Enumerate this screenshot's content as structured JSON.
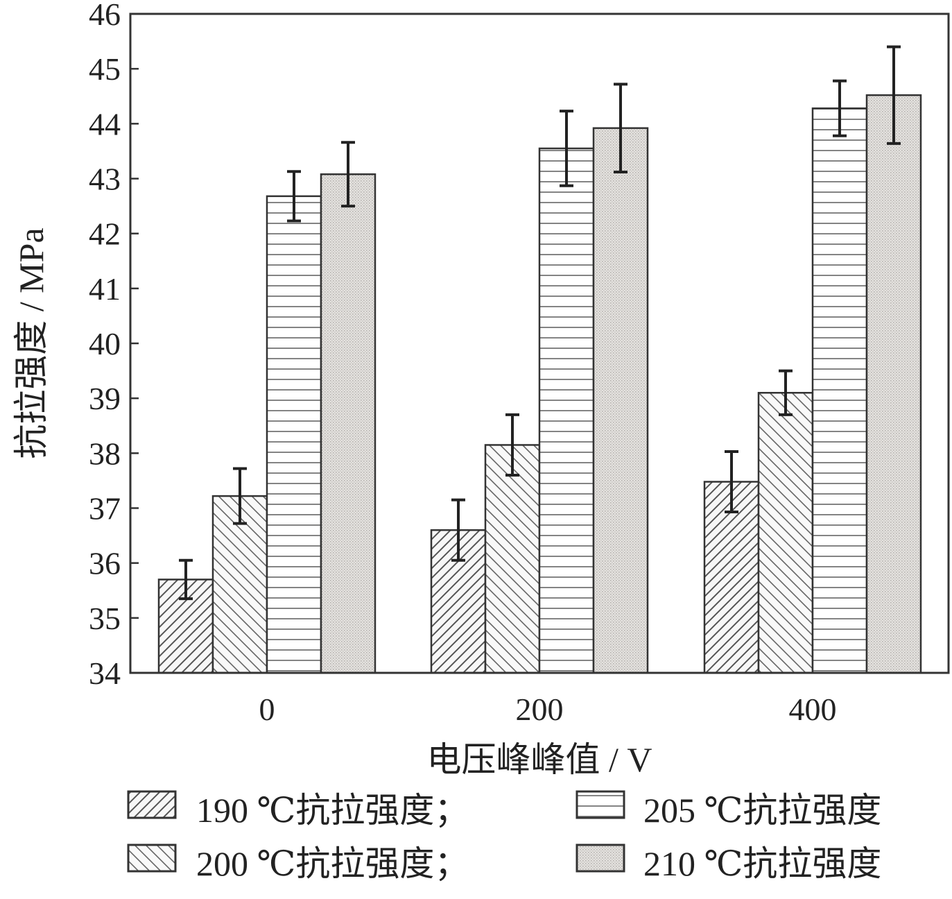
{
  "chart_data": {
    "type": "bar",
    "xlabel": "电压峰峰值 / V",
    "ylabel": "抗拉强度 / MPa",
    "categories": [
      "0",
      "200",
      "400"
    ],
    "ylim": [
      34,
      46
    ],
    "yticks": [
      34,
      35,
      36,
      37,
      38,
      39,
      40,
      41,
      42,
      43,
      44,
      45,
      46
    ],
    "grid": false,
    "legend_position": "bottom",
    "error_bars": true,
    "series": [
      {
        "name": "190 ℃抗拉强度；",
        "pattern": "diagonal-forward",
        "values": [
          35.7,
          36.6,
          37.48
        ],
        "errors": [
          0.35,
          0.55,
          0.55
        ]
      },
      {
        "name": "200 ℃抗拉强度；",
        "pattern": "diagonal-backward",
        "values": [
          37.22,
          38.15,
          39.1
        ],
        "errors": [
          0.5,
          0.55,
          0.4
        ]
      },
      {
        "name": "205 ℃抗拉强度",
        "pattern": "horizontal-lines",
        "values": [
          42.68,
          43.55,
          44.28
        ],
        "errors": [
          0.45,
          0.68,
          0.5
        ]
      },
      {
        "name": "210 ℃抗拉强度",
        "pattern": "dotted",
        "values": [
          43.08,
          43.92,
          44.52
        ],
        "errors": [
          0.58,
          0.8,
          0.88
        ]
      }
    ]
  }
}
